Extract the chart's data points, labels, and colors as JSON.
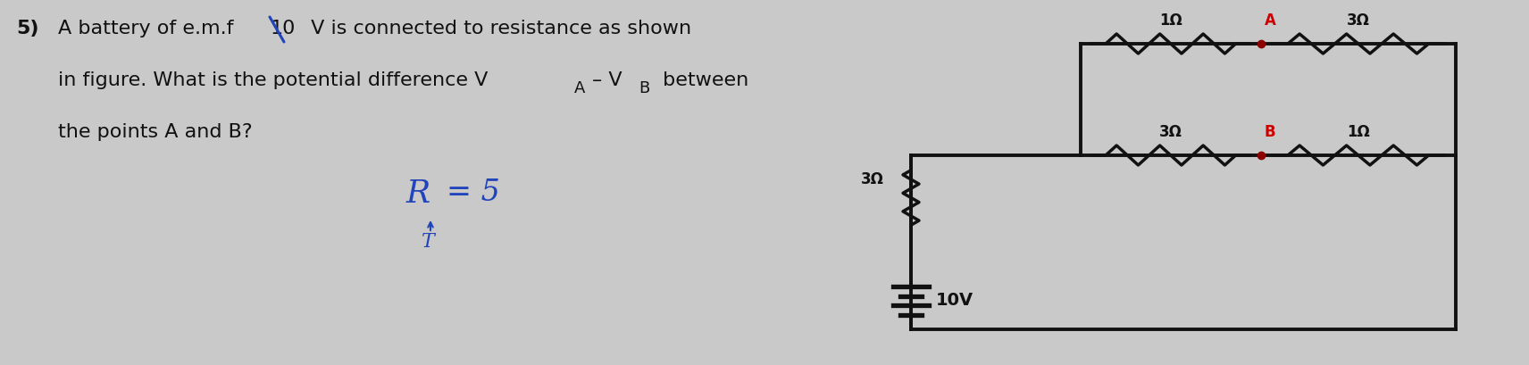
{
  "bg_color": "#c9c9c9",
  "text_color": "#111111",
  "dot_color": "#8b0000",
  "wire_color": "#111111",
  "blue_color": "#2244bb",
  "circuit": {
    "battery_label": "10V",
    "r_series": "3Ω",
    "r_top_left": "1Ω",
    "r_top_right": "3Ω",
    "r_bot_left": "3Ω",
    "r_bot_right": "1Ω",
    "label_A": "A",
    "label_B": "B"
  }
}
